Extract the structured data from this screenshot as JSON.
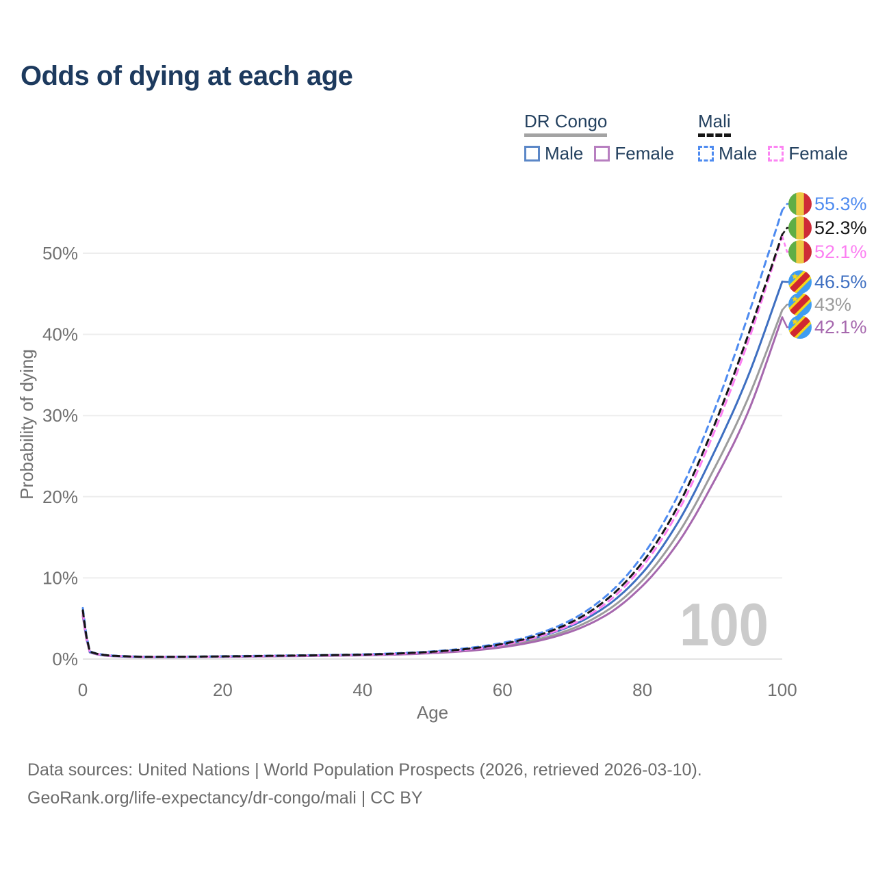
{
  "title": "Odds of dying at each age",
  "legend": {
    "groups": [
      {
        "label": "DR Congo",
        "line_style": "solid",
        "underline_color": "#a3a3a3",
        "items": [
          {
            "label": "Male",
            "color": "#5b87c7",
            "dashed": false
          },
          {
            "label": "Female",
            "color": "#b77fc0",
            "dashed": false
          }
        ]
      },
      {
        "label": "Mali",
        "line_style": "dashed",
        "underline_color": "#161616",
        "items": [
          {
            "label": "Male",
            "color": "#4e8bf0",
            "dashed": true
          },
          {
            "label": "Female",
            "color": "#fc85f3",
            "dashed": true
          }
        ]
      }
    ]
  },
  "watermark": "100",
  "footer": {
    "line1": "Data sources: United Nations | World Population Prospects (2026, retrieved 2026-03-10).",
    "line2": "GeoRank.org/life-expectancy/dr-congo/mali | CC BY"
  },
  "flags": {
    "ml": {
      "green": "#5fae46",
      "yellow": "#eec943",
      "red": "#ce2b37"
    },
    "cd": {
      "blue": "#3f9df2",
      "yellow": "#f7d618",
      "red": "#d02731"
    }
  },
  "chart_data": {
    "type": "line",
    "title": "Odds of dying at each age",
    "xlabel": "Age",
    "ylabel": "Probability of dying",
    "xlim": [
      0,
      100
    ],
    "ylim": [
      0,
      57
    ],
    "grid": true,
    "legend_position": "top-right",
    "xticks": {
      "values": [
        0,
        20,
        40,
        60,
        80,
        100
      ],
      "labels": [
        "0",
        "20",
        "40",
        "60",
        "80",
        "100"
      ]
    },
    "yticks": {
      "values": [
        0,
        10,
        20,
        30,
        40,
        50
      ],
      "labels": [
        "0%",
        "10%",
        "20%",
        "30%",
        "40%",
        "50%"
      ]
    },
    "x_ages": [
      0,
      1,
      5,
      10,
      15,
      20,
      25,
      30,
      35,
      40,
      45,
      50,
      55,
      60,
      65,
      70,
      75,
      80,
      85,
      90,
      95,
      100
    ],
    "series": [
      {
        "key": "drc_both",
        "name": "DR Congo",
        "sex": "Both",
        "country": "cd",
        "color": "#9c9c9c",
        "dashed": false,
        "end_label": "43%",
        "values": [
          5.6,
          0.85,
          0.34,
          0.24,
          0.26,
          0.3,
          0.34,
          0.39,
          0.44,
          0.5,
          0.61,
          0.8,
          1.1,
          1.6,
          2.42,
          3.75,
          6.0,
          9.7,
          15.3,
          23.0,
          31.9,
          43.0
        ]
      },
      {
        "key": "drc_female",
        "name": "DR Congo Female",
        "sex": "Female",
        "country": "cd",
        "color": "#a668ae",
        "dashed": false,
        "end_label": "42.1%",
        "values": [
          5.3,
          0.82,
          0.33,
          0.23,
          0.25,
          0.28,
          0.32,
          0.36,
          0.41,
          0.46,
          0.56,
          0.73,
          1.0,
          1.46,
          2.22,
          3.45,
          5.5,
          9.0,
          14.2,
          21.5,
          30.2,
          42.1
        ]
      },
      {
        "key": "drc_male",
        "name": "DR Congo Male",
        "sex": "Male",
        "country": "cd",
        "color": "#3e6fc1",
        "dashed": false,
        "end_label": "46.5%",
        "values": [
          5.9,
          0.88,
          0.36,
          0.25,
          0.28,
          0.32,
          0.37,
          0.42,
          0.47,
          0.54,
          0.66,
          0.88,
          1.22,
          1.78,
          2.7,
          4.15,
          6.6,
          10.6,
          16.7,
          25.0,
          34.6,
          46.5
        ]
      },
      {
        "key": "mali_male",
        "name": "Mali Male",
        "sex": "Male",
        "country": "ml",
        "color": "#4e8bf0",
        "dashed": true,
        "end_label": "55.3%",
        "values": [
          6.3,
          0.95,
          0.4,
          0.28,
          0.3,
          0.35,
          0.4,
          0.45,
          0.5,
          0.58,
          0.72,
          0.95,
          1.35,
          2.0,
          3.1,
          4.9,
          7.9,
          12.7,
          20.0,
          30.0,
          42.0,
          55.3
        ]
      },
      {
        "key": "mali_female",
        "name": "Mali Female",
        "sex": "Female",
        "country": "ml",
        "color": "#fc7ff2",
        "dashed": true,
        "end_label": "52.1%",
        "values": [
          5.75,
          0.9,
          0.37,
          0.26,
          0.28,
          0.31,
          0.36,
          0.41,
          0.46,
          0.52,
          0.64,
          0.85,
          1.18,
          1.74,
          2.72,
          4.3,
          7.0,
          11.4,
          18.0,
          27.4,
          38.8,
          52.1
        ]
      },
      {
        "key": "mali_both",
        "name": "Mali",
        "sex": "Both",
        "country": "ml",
        "color": "#161616",
        "dashed": true,
        "end_label": "52.3%",
        "values": [
          6.0,
          0.92,
          0.38,
          0.27,
          0.29,
          0.33,
          0.38,
          0.43,
          0.48,
          0.55,
          0.68,
          0.9,
          1.26,
          1.86,
          2.9,
          4.6,
          7.4,
          11.9,
          18.7,
          28.2,
          39.6,
          52.3
        ]
      }
    ]
  }
}
